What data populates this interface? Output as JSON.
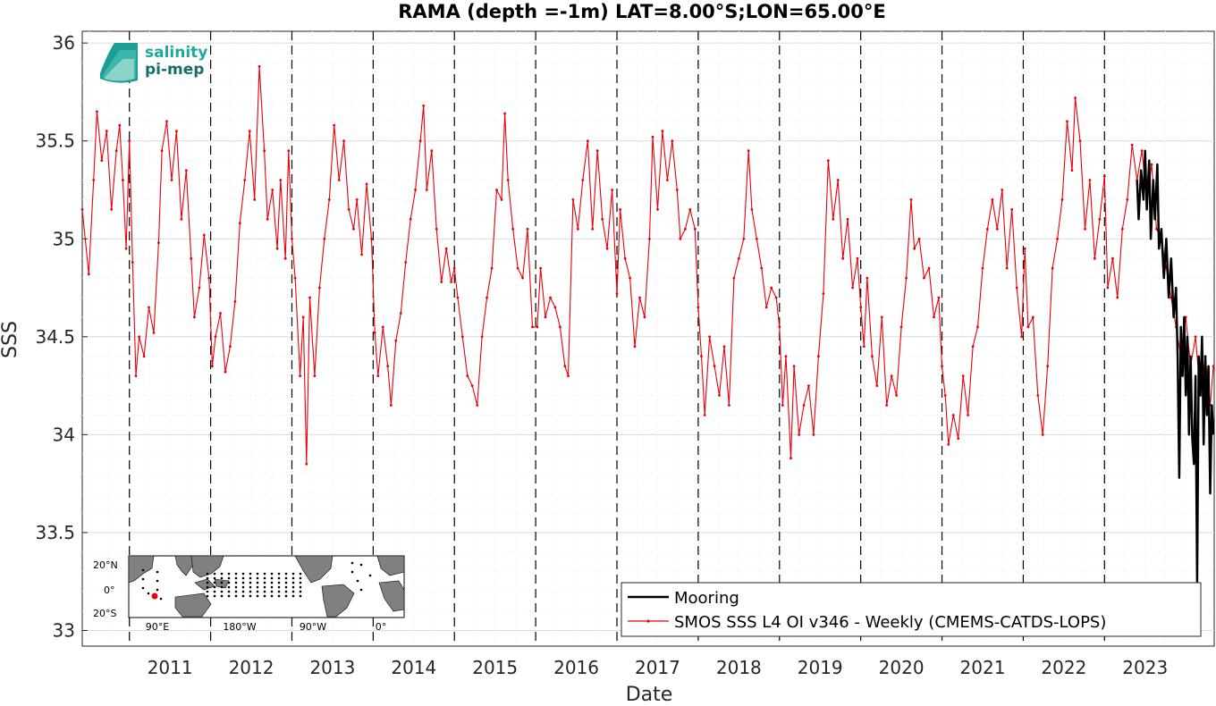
{
  "chart_data": {
    "type": "line",
    "title": "RAMA (depth =-1m) LAT=8.00°S;LON=65.00°E",
    "xlabel": "Date",
    "ylabel": "SSS",
    "xlim": [
      2010.42,
      2024.35
    ],
    "ylim": [
      32.92,
      36.06
    ],
    "yticks": [
      "33",
      "33.5",
      "34",
      "34.5",
      "35",
      "35.5",
      "36"
    ],
    "xticks": [
      "2011",
      "2012",
      "2013",
      "2014",
      "2015",
      "2016",
      "2017",
      "2018",
      "2019",
      "2020",
      "2021",
      "2022",
      "2023"
    ],
    "year_lines": [
      2011,
      2012,
      2013,
      2014,
      2015,
      2016,
      2017,
      2018,
      2019,
      2020,
      2021,
      2022,
      2023
    ],
    "grid": true,
    "legend_position": "bottom-right",
    "series": [
      {
        "name": "Mooring",
        "color": "#000000",
        "points": [
          [
            2023.4,
            35.3
          ],
          [
            2023.42,
            35.1
          ],
          [
            2023.45,
            35.35
          ],
          [
            2023.48,
            35.2
          ],
          [
            2023.5,
            35.45
          ],
          [
            2023.52,
            35.15
          ],
          [
            2023.55,
            35.4
          ],
          [
            2023.57,
            35.0
          ],
          [
            2023.6,
            35.3
          ],
          [
            2023.62,
            35.1
          ],
          [
            2023.65,
            35.38
          ],
          [
            2023.67,
            34.95
          ],
          [
            2023.7,
            35.05
          ],
          [
            2023.73,
            34.8
          ],
          [
            2023.76,
            35.0
          ],
          [
            2023.79,
            34.7
          ],
          [
            2023.82,
            34.9
          ],
          [
            2023.85,
            34.6
          ],
          [
            2023.88,
            34.75
          ],
          [
            2023.9,
            34.4
          ],
          [
            2023.92,
            33.78
          ],
          [
            2023.94,
            34.55
          ],
          [
            2023.96,
            34.3
          ],
          [
            2023.98,
            34.6
          ],
          [
            2024.0,
            34.2
          ],
          [
            2024.02,
            34.5
          ],
          [
            2024.04,
            34.0
          ],
          [
            2024.06,
            34.4
          ],
          [
            2024.08,
            33.98
          ],
          [
            2024.1,
            33.85
          ],
          [
            2024.12,
            34.3
          ],
          [
            2024.14,
            33.25
          ],
          [
            2024.16,
            34.4
          ],
          [
            2024.18,
            34.2
          ],
          [
            2024.2,
            34.5
          ],
          [
            2024.22,
            33.95
          ],
          [
            2024.24,
            34.4
          ],
          [
            2024.26,
            34.1
          ],
          [
            2024.28,
            34.35
          ],
          [
            2024.3,
            33.7
          ],
          [
            2024.32,
            34.15
          ],
          [
            2024.34,
            34.0
          ]
        ]
      },
      {
        "name": "SMOS SSS L4 OI v346 - Weekly (CMEMS-CATDS-LOPS)",
        "color": "#e8000b",
        "points": [
          [
            2010.42,
            35.15
          ],
          [
            2010.5,
            34.82
          ],
          [
            2010.56,
            35.3
          ],
          [
            2010.6,
            35.65
          ],
          [
            2010.66,
            35.4
          ],
          [
            2010.72,
            35.55
          ],
          [
            2010.78,
            35.15
          ],
          [
            2010.84,
            35.45
          ],
          [
            2010.88,
            35.58
          ],
          [
            2010.92,
            35.3
          ],
          [
            2010.96,
            34.95
          ],
          [
            2011.0,
            35.5
          ],
          [
            2011.04,
            34.88
          ],
          [
            2011.08,
            34.3
          ],
          [
            2011.12,
            34.5
          ],
          [
            2011.18,
            34.4
          ],
          [
            2011.24,
            34.65
          ],
          [
            2011.3,
            34.52
          ],
          [
            2011.36,
            34.98
          ],
          [
            2011.4,
            35.45
          ],
          [
            2011.46,
            35.6
          ],
          [
            2011.52,
            35.3
          ],
          [
            2011.58,
            35.55
          ],
          [
            2011.64,
            35.1
          ],
          [
            2011.7,
            35.35
          ],
          [
            2011.76,
            34.9
          ],
          [
            2011.8,
            34.6
          ],
          [
            2011.86,
            34.75
          ],
          [
            2011.92,
            35.02
          ],
          [
            2011.98,
            34.8
          ],
          [
            2012.02,
            34.35
          ],
          [
            2012.06,
            34.5
          ],
          [
            2012.12,
            34.62
          ],
          [
            2012.18,
            34.32
          ],
          [
            2012.24,
            34.45
          ],
          [
            2012.3,
            34.68
          ],
          [
            2012.36,
            35.08
          ],
          [
            2012.42,
            35.3
          ],
          [
            2012.48,
            35.55
          ],
          [
            2012.54,
            35.2
          ],
          [
            2012.6,
            35.88
          ],
          [
            2012.66,
            35.45
          ],
          [
            2012.7,
            35.1
          ],
          [
            2012.76,
            35.25
          ],
          [
            2012.82,
            34.95
          ],
          [
            2012.86,
            35.3
          ],
          [
            2012.92,
            34.9
          ],
          [
            2012.96,
            35.45
          ],
          [
            2013.0,
            35.0
          ],
          [
            2013.04,
            34.8
          ],
          [
            2013.1,
            34.3
          ],
          [
            2013.14,
            34.6
          ],
          [
            2013.18,
            33.85
          ],
          [
            2013.22,
            34.7
          ],
          [
            2013.28,
            34.3
          ],
          [
            2013.34,
            34.75
          ],
          [
            2013.4,
            35.0
          ],
          [
            2013.46,
            35.2
          ],
          [
            2013.52,
            35.58
          ],
          [
            2013.58,
            35.3
          ],
          [
            2013.64,
            35.5
          ],
          [
            2013.7,
            35.15
          ],
          [
            2013.76,
            35.05
          ],
          [
            2013.8,
            35.2
          ],
          [
            2013.86,
            34.92
          ],
          [
            2013.92,
            35.28
          ],
          [
            2013.98,
            35.0
          ],
          [
            2014.02,
            34.52
          ],
          [
            2014.06,
            34.3
          ],
          [
            2014.12,
            34.55
          ],
          [
            2014.18,
            34.35
          ],
          [
            2014.22,
            34.15
          ],
          [
            2014.28,
            34.48
          ],
          [
            2014.34,
            34.62
          ],
          [
            2014.4,
            34.88
          ],
          [
            2014.46,
            35.1
          ],
          [
            2014.52,
            35.25
          ],
          [
            2014.58,
            35.5
          ],
          [
            2014.62,
            35.68
          ],
          [
            2014.66,
            35.25
          ],
          [
            2014.72,
            35.45
          ],
          [
            2014.78,
            35.05
          ],
          [
            2014.84,
            34.78
          ],
          [
            2014.9,
            34.95
          ],
          [
            2014.96,
            34.78
          ],
          [
            2015.0,
            34.85
          ],
          [
            2015.04,
            34.7
          ],
          [
            2015.1,
            34.5
          ],
          [
            2015.16,
            34.3
          ],
          [
            2015.22,
            34.25
          ],
          [
            2015.28,
            34.15
          ],
          [
            2015.34,
            34.5
          ],
          [
            2015.4,
            34.7
          ],
          [
            2015.46,
            34.85
          ],
          [
            2015.52,
            35.25
          ],
          [
            2015.58,
            35.2
          ],
          [
            2015.62,
            35.64
          ],
          [
            2015.66,
            35.3
          ],
          [
            2015.72,
            35.05
          ],
          [
            2015.78,
            34.85
          ],
          [
            2015.84,
            34.8
          ],
          [
            2015.9,
            35.05
          ],
          [
            2015.96,
            34.55
          ],
          [
            2016.02,
            34.55
          ],
          [
            2016.06,
            34.85
          ],
          [
            2016.12,
            34.6
          ],
          [
            2016.18,
            34.7
          ],
          [
            2016.24,
            34.65
          ],
          [
            2016.3,
            34.55
          ],
          [
            2016.36,
            34.35
          ],
          [
            2016.4,
            34.3
          ],
          [
            2016.46,
            35.2
          ],
          [
            2016.52,
            35.05
          ],
          [
            2016.58,
            35.3
          ],
          [
            2016.64,
            35.5
          ],
          [
            2016.7,
            35.05
          ],
          [
            2016.76,
            35.45
          ],
          [
            2016.82,
            35.1
          ],
          [
            2016.88,
            34.95
          ],
          [
            2016.94,
            35.25
          ],
          [
            2017.0,
            34.72
          ],
          [
            2017.04,
            35.15
          ],
          [
            2017.1,
            34.9
          ],
          [
            2017.16,
            34.8
          ],
          [
            2017.22,
            34.45
          ],
          [
            2017.28,
            34.7
          ],
          [
            2017.34,
            34.6
          ],
          [
            2017.4,
            35.0
          ],
          [
            2017.44,
            35.52
          ],
          [
            2017.5,
            35.15
          ],
          [
            2017.56,
            35.55
          ],
          [
            2017.62,
            35.3
          ],
          [
            2017.68,
            35.5
          ],
          [
            2017.74,
            35.25
          ],
          [
            2017.78,
            35.0
          ],
          [
            2017.84,
            35.05
          ],
          [
            2017.9,
            35.15
          ],
          [
            2017.96,
            35.05
          ],
          [
            2018.0,
            34.65
          ],
          [
            2018.04,
            34.4
          ],
          [
            2018.08,
            34.1
          ],
          [
            2018.14,
            34.5
          ],
          [
            2018.2,
            34.35
          ],
          [
            2018.26,
            34.2
          ],
          [
            2018.32,
            34.45
          ],
          [
            2018.38,
            34.15
          ],
          [
            2018.44,
            34.8
          ],
          [
            2018.5,
            34.9
          ],
          [
            2018.56,
            35.0
          ],
          [
            2018.62,
            35.45
          ],
          [
            2018.66,
            35.15
          ],
          [
            2018.72,
            35.0
          ],
          [
            2018.78,
            34.85
          ],
          [
            2018.84,
            34.65
          ],
          [
            2018.9,
            34.75
          ],
          [
            2018.96,
            34.7
          ],
          [
            2019.0,
            34.55
          ],
          [
            2019.04,
            34.15
          ],
          [
            2019.08,
            34.4
          ],
          [
            2019.14,
            33.88
          ],
          [
            2019.18,
            34.35
          ],
          [
            2019.24,
            34.0
          ],
          [
            2019.3,
            34.15
          ],
          [
            2019.36,
            34.25
          ],
          [
            2019.42,
            34.0
          ],
          [
            2019.48,
            34.4
          ],
          [
            2019.54,
            34.72
          ],
          [
            2019.6,
            35.4
          ],
          [
            2019.66,
            35.1
          ],
          [
            2019.72,
            35.3
          ],
          [
            2019.78,
            34.9
          ],
          [
            2019.84,
            35.1
          ],
          [
            2019.9,
            34.75
          ],
          [
            2019.96,
            34.9
          ],
          [
            2020.0,
            34.65
          ],
          [
            2020.04,
            34.45
          ],
          [
            2020.08,
            34.8
          ],
          [
            2020.14,
            34.4
          ],
          [
            2020.2,
            34.25
          ],
          [
            2020.26,
            34.6
          ],
          [
            2020.32,
            34.15
          ],
          [
            2020.38,
            34.3
          ],
          [
            2020.44,
            34.2
          ],
          [
            2020.5,
            34.55
          ],
          [
            2020.56,
            34.8
          ],
          [
            2020.62,
            35.2
          ],
          [
            2020.66,
            34.95
          ],
          [
            2020.72,
            35.0
          ],
          [
            2020.78,
            34.8
          ],
          [
            2020.84,
            34.85
          ],
          [
            2020.9,
            34.6
          ],
          [
            2020.96,
            34.7
          ],
          [
            2021.0,
            34.35
          ],
          [
            2021.04,
            34.2
          ],
          [
            2021.08,
            33.95
          ],
          [
            2021.14,
            34.1
          ],
          [
            2021.2,
            33.98
          ],
          [
            2021.26,
            34.3
          ],
          [
            2021.32,
            34.1
          ],
          [
            2021.38,
            34.45
          ],
          [
            2021.44,
            34.55
          ],
          [
            2021.5,
            34.85
          ],
          [
            2021.56,
            35.05
          ],
          [
            2021.62,
            35.2
          ],
          [
            2021.68,
            35.05
          ],
          [
            2021.74,
            35.25
          ],
          [
            2021.8,
            34.85
          ],
          [
            2021.86,
            35.15
          ],
          [
            2021.92,
            34.75
          ],
          [
            2021.98,
            34.5
          ],
          [
            2022.02,
            34.95
          ],
          [
            2022.06,
            34.55
          ],
          [
            2022.12,
            34.6
          ],
          [
            2022.18,
            34.2
          ],
          [
            2022.24,
            34.0
          ],
          [
            2022.3,
            34.35
          ],
          [
            2022.36,
            34.85
          ],
          [
            2022.42,
            35.0
          ],
          [
            2022.48,
            35.2
          ],
          [
            2022.54,
            35.6
          ],
          [
            2022.6,
            35.35
          ],
          [
            2022.64,
            35.72
          ],
          [
            2022.7,
            35.5
          ],
          [
            2022.76,
            35.05
          ],
          [
            2022.82,
            35.3
          ],
          [
            2022.88,
            34.9
          ],
          [
            2022.94,
            35.1
          ],
          [
            2023.0,
            35.32
          ],
          [
            2023.04,
            34.75
          ],
          [
            2023.1,
            34.9
          ],
          [
            2023.16,
            34.7
          ],
          [
            2023.22,
            35.05
          ],
          [
            2023.28,
            35.2
          ],
          [
            2023.34,
            35.48
          ],
          [
            2023.4,
            35.3
          ],
          [
            2023.46,
            35.45
          ],
          [
            2023.52,
            35.2
          ],
          [
            2023.58,
            35.38
          ],
          [
            2023.64,
            35.05
          ],
          [
            2023.7,
            35.0
          ],
          [
            2023.76,
            34.85
          ],
          [
            2023.82,
            34.7
          ],
          [
            2023.88,
            34.55
          ],
          [
            2023.94,
            34.4
          ],
          [
            2024.0,
            34.6
          ],
          [
            2024.06,
            34.35
          ],
          [
            2024.12,
            34.5
          ],
          [
            2024.18,
            34.2
          ],
          [
            2024.24,
            34.4
          ],
          [
            2024.3,
            34.15
          ],
          [
            2024.34,
            34.35
          ]
        ]
      }
    ]
  },
  "logo": {
    "line1": "salinity",
    "line2": "pi-mep"
  },
  "inset_map": {
    "lat_labels": [
      "20°N",
      "0°",
      "20°S"
    ],
    "lon_labels": [
      "90°E",
      "180°W",
      "90°W",
      "0°"
    ],
    "land_color": "#808080",
    "marker_color": "#e8000b"
  }
}
